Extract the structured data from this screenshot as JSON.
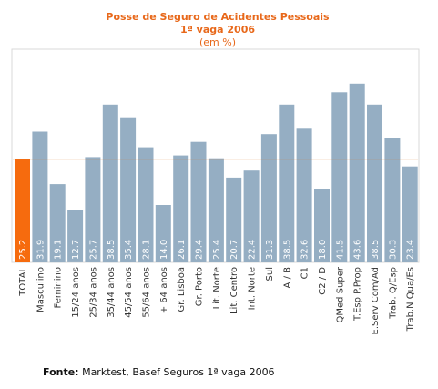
{
  "chart_data": {
    "type": "bar",
    "title": "Posse de Seguro de Acidentes Pessoais",
    "subtitle_line1": "1ª vaga 2006",
    "subtitle_line2": "(em %)",
    "categories": [
      "TOTAL",
      "Masculino",
      "Feminino",
      "15/24 anos",
      "25/34 anos",
      "35/44 anos",
      "45/54 anos",
      "55/64 anos",
      "+ 64 anos",
      "Gr. Lisboa",
      "Gr. Porto",
      "Lit. Norte",
      "Lit. Centro",
      "Int. Norte",
      "Sul",
      "A / B",
      "C1",
      "C2 / D",
      "QMed Super",
      "T.Esp P.Prop",
      "E.Serv Com/Ad",
      "Trab. Q/Esp",
      "Trab.N Qua/Es"
    ],
    "values": [
      25.2,
      31.9,
      19.1,
      12.7,
      25.7,
      38.5,
      35.4,
      28.1,
      14.0,
      26.1,
      29.4,
      25.4,
      20.7,
      22.4,
      31.3,
      38.5,
      32.6,
      18.0,
      41.5,
      43.6,
      38.5,
      30.3,
      23.4
    ],
    "value_labels": [
      "25.2",
      "31.9",
      "19.1",
      "12.7",
      "25.7",
      "38.5",
      "35.4",
      "28.1",
      "14.0",
      "26.1",
      "29.4",
      "25.4",
      "20.7",
      "22.4",
      "31.3",
      "38.5",
      "32.6",
      "18.0",
      "41.5",
      "43.6",
      "38.5",
      "30.3",
      "23.4"
    ],
    "reference_line": 25.2,
    "ylim": [
      0,
      48
    ],
    "grid": false,
    "colors": {
      "bar": "#95aec3",
      "highlight": "#f66b0e",
      "reference_line": "#d77a2d",
      "title": "#e8681a"
    }
  },
  "source": {
    "label": "Fonte:",
    "text": "Marktest, Basef Seguros 1ª vaga 2006"
  }
}
